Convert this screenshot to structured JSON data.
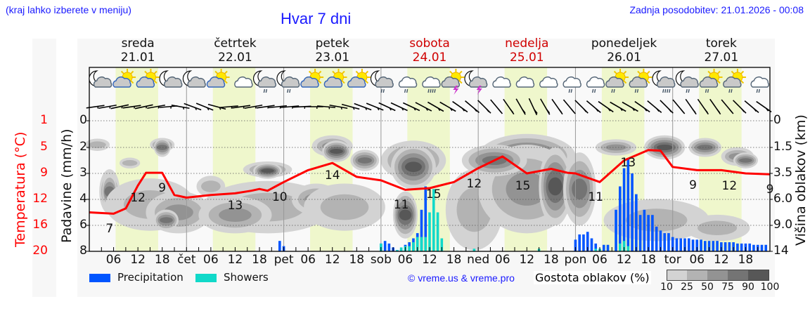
{
  "header": {
    "hint": "(kraj lahko izberete v meniju)",
    "title": "Hvar 7 dni",
    "updated": "Zadnja posodobitev: 21.01.2026 - 00:08"
  },
  "days": [
    {
      "name": "sreda",
      "date": "21.01",
      "weekend": false
    },
    {
      "name": "četrtek",
      "date": "22.01",
      "weekend": false
    },
    {
      "name": "petek",
      "date": "23.01",
      "weekend": false
    },
    {
      "name": "sobota",
      "date": "24.01",
      "weekend": true
    },
    {
      "name": "nedelja",
      "date": "25.01",
      "weekend": true
    },
    {
      "name": "ponedeljek",
      "date": "26.01",
      "weekend": false
    },
    {
      "name": "torek",
      "date": "27.01",
      "weekend": false
    }
  ],
  "axes": {
    "left_title": "Temperatura (°C)",
    "left_ticks": [
      "20",
      "16",
      "12",
      "9",
      "5",
      "1"
    ],
    "prec_title": "Padavine (mm/h)",
    "prec_ticks": [
      "8",
      "6",
      "4",
      "3",
      "2",
      "0"
    ],
    "right_title": "Višina oblakov (km)",
    "right_ticks": [
      "14",
      "9.0",
      "6.0",
      "3.5",
      "1.5",
      "0"
    ],
    "x_ticks": [
      "06",
      "12",
      "18",
      "čet",
      "06",
      "12",
      "18",
      "pet",
      "06",
      "12",
      "18",
      "sob",
      "06",
      "12",
      "18",
      "ned",
      "06",
      "12",
      "18",
      "pon",
      "06",
      "12",
      "18",
      "tor",
      "06",
      "12",
      "18"
    ]
  },
  "legend": {
    "precipitation_label": "Precipitation",
    "showers_label": "Showers",
    "precipitation_color": "#0055ff",
    "showers_color": "#11d9c9"
  },
  "copyright": "© vreme.us & vreme.pro",
  "cloud_density": {
    "title": "Gostota oblakov (%)",
    "labels": [
      "10",
      "25",
      "50",
      "75",
      "90",
      "100"
    ],
    "colors": [
      "#d3d3d3",
      "#b3b3b3",
      "#939393",
      "#747474",
      "#575757"
    ]
  },
  "colors": {
    "temperature": "#ff0000",
    "daylight": "#eff7cc",
    "weekend_text": "#d00000",
    "link_blue": "#1a1aff"
  },
  "icons": [
    "night-cloudy",
    "partly-sunny",
    "partly-sunny",
    "night-cloudy",
    "night-cloudy",
    "partly-sunny",
    "cloudy-white",
    "night-rain-light",
    "night-rain-light",
    "partly-sunny",
    "partly-sunny",
    "partly-sunny",
    "night-rain-light",
    "cloudy-rain-light",
    "cloudy-rain-heavy",
    "sun-thunder",
    "night-thunder",
    "cloudy",
    "cloudy",
    "cloudy",
    "cloudy-rain-light",
    "cloudy-rain-light",
    "sun-rain",
    "sun-rain",
    "night-rain-heavy",
    "night-rain-light",
    "sun-rain-light",
    "sun-rain-light",
    "cloudy-rain-light"
  ],
  "chart_data": {
    "type": "line",
    "title": "Hvar 7 dni",
    "x_unit": "hours from 21.01 00:00",
    "temperature": {
      "name": "Temperatura (°C)",
      "x": [
        0,
        6,
        9,
        12,
        14,
        18,
        21,
        24,
        30,
        36,
        40,
        42,
        44,
        46,
        48,
        54,
        60,
        66,
        72,
        78,
        84,
        90,
        96,
        102,
        108,
        114,
        118,
        120,
        126,
        132,
        138,
        141,
        144,
        150,
        156,
        162,
        168,
        174,
        180,
        186,
        192,
        198,
        204,
        210,
        216,
        222,
        228,
        234,
        240,
        246,
        252,
        258,
        264,
        270,
        276,
        282,
        288,
        294,
        300,
        306,
        312,
        318,
        324,
        330,
        336,
        342,
        348,
        354,
        360,
        366,
        372,
        378,
        384,
        390,
        396,
        402,
        408,
        414,
        420,
        426,
        432,
        438,
        444,
        450,
        456,
        462,
        468
      ],
      "y": [
        7,
        6.8,
        7.6,
        10.6,
        12.1,
        12.1,
        9.5,
        9.2,
        9.5,
        9.7,
        10.0,
        10.2,
        10.0,
        10.5,
        11.0,
        12.5,
        13.6,
        11.6,
        11.2,
        10.1,
        10.3,
        11.0,
        12.8,
        14.6,
        12.0,
        12.7,
        12.1,
        12.0,
        11.0,
        14.0,
        15.6,
        15.5,
        13.0,
        12.5,
        12.5,
        12.0,
        11.9,
        12.0,
        12.2,
        13.5,
        15.2,
        14.8,
        12.5,
        12.3,
        11.5,
        11.3,
        11.0,
        11.7,
        12.8,
        13.3,
        13.7,
        12.0,
        11.5,
        11.2,
        9.8,
        9.3,
        9.2,
        9.2,
        9.6,
        10.5,
        12.0,
        12.6,
        10.0,
        9.8,
        10.2,
        9.5,
        9.5,
        9.2,
        9.2,
        9.2,
        9.2,
        9.2,
        9.2,
        9.2,
        9.2,
        9.2,
        9.2,
        9.2,
        9.2,
        9.2,
        9.2,
        9.2,
        9.2,
        9.2,
        9.2,
        9.2,
        9.2
      ]
    },
    "temperature_labels": [
      {
        "x": 5,
        "text": "7",
        "kind": "min"
      },
      {
        "x": 12,
        "text": "12",
        "kind": "max"
      },
      {
        "x": 18,
        "text": "9",
        "kind": "min"
      },
      {
        "x": 36,
        "text": "13",
        "kind": "max"
      },
      {
        "x": 47,
        "text": "10",
        "kind": "min"
      },
      {
        "x": 60,
        "text": "14",
        "kind": "max"
      },
      {
        "x": 77,
        "text": "11",
        "kind": "min"
      },
      {
        "x": 85,
        "text": "15",
        "kind": "max"
      },
      {
        "x": 95,
        "text": "12",
        "kind": "min"
      },
      {
        "x": 107,
        "text": "15",
        "kind": "max"
      },
      {
        "x": 125,
        "text": "11",
        "kind": "min"
      },
      {
        "x": 133,
        "text": "13",
        "kind": "max"
      },
      {
        "x": 149,
        "text": "9",
        "kind": "min"
      },
      {
        "x": 158,
        "text": "12",
        "kind": "max"
      },
      {
        "x": 168,
        "text": "9",
        "kind": "min"
      }
    ],
    "precipitation": {
      "name": "Precipitation",
      "unit": "mm/h",
      "x": [
        47,
        48,
        72,
        73,
        74,
        75,
        76,
        77,
        78,
        79,
        80,
        81,
        82,
        83,
        84,
        85,
        86,
        87,
        120,
        121,
        122,
        123,
        124,
        125,
        127,
        128,
        130,
        131,
        132,
        133,
        134,
        135,
        136,
        137,
        138,
        139,
        140,
        141,
        142,
        143,
        144,
        145,
        146,
        147,
        148,
        149,
        150,
        151,
        152,
        153,
        154,
        155,
        156,
        157,
        158,
        159,
        160,
        161,
        162,
        163,
        164,
        165,
        166,
        167
      ],
      "y": [
        0.8,
        0.4,
        0.6,
        0.8,
        0.6,
        0.3,
        0.1,
        0.2,
        0.5,
        0.7,
        1.0,
        1.4,
        2.6,
        3.5,
        0.3,
        0,
        0,
        0,
        0.9,
        1.3,
        1.3,
        1.5,
        1.0,
        0.6,
        0.5,
        0.5,
        2.6,
        3.5,
        4.4,
        5.1,
        4.0,
        3.2,
        2.4,
        2.6,
        2.4,
        2.4,
        1.9,
        1.6,
        1.4,
        1.4,
        1.1,
        1.0,
        1.0,
        1.0,
        1.0,
        0.9,
        0.9,
        0.9,
        0.8,
        0.8,
        0.8,
        0.8,
        0.7,
        0.7,
        0.7,
        0.7,
        0.6,
        0.6,
        0.6,
        0.6,
        0.5,
        0.5,
        0.5,
        0.5
      ]
    },
    "showers": {
      "name": "Showers",
      "unit": "mm/h",
      "x": [
        72,
        76,
        77,
        78,
        79,
        80,
        81,
        82,
        83,
        84,
        85,
        86,
        87,
        95,
        111,
        125,
        126,
        131,
        132,
        133
      ],
      "y": [
        0.6,
        0.1,
        0.3,
        0.4,
        0.4,
        0.7,
        1.1,
        1.1,
        1.1,
        2.5,
        3.4,
        2.5,
        1.0,
        0.2,
        0.2,
        0.2,
        0.2,
        0.6,
        0.8,
        0.4
      ]
    },
    "precip_axis_rows": {
      "labels": [
        "0",
        "2",
        "3",
        "4",
        "6",
        "8"
      ]
    },
    "temp_axis_rows": {
      "labels": [
        "1",
        "5",
        "9",
        "12",
        "16",
        "20"
      ]
    },
    "cloud_height_rows": {
      "labels": [
        "0",
        "1.5",
        "3.5",
        "6.0",
        "9.0",
        "14"
      ]
    },
    "xlabel": "",
    "ylabel_left": "Temperatura (°C)",
    "ylabel_precip": "Padavine (mm/h)",
    "ylabel_right": "Višina oblakov (km)",
    "xlim_hours": [
      0,
      168
    ],
    "grid": true,
    "legend_position": "bottom-left"
  }
}
